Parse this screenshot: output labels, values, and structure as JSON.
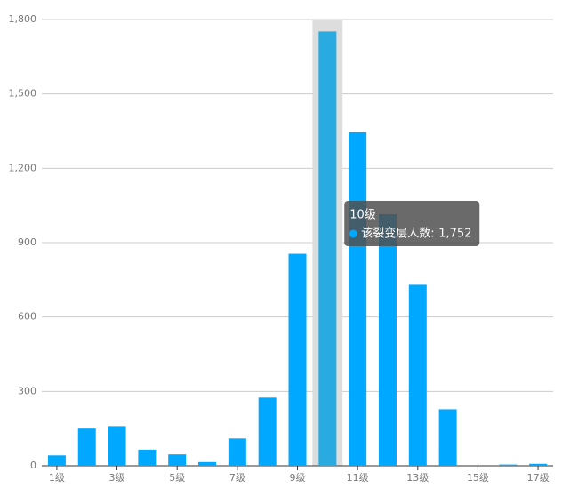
{
  "chart_data": {
    "type": "bar",
    "categories": [
      "1级",
      null,
      "3级",
      null,
      "5级",
      null,
      "7级",
      null,
      "9级",
      null,
      "11级",
      null,
      "13级",
      null,
      "15级",
      null,
      "17级"
    ],
    "series": [
      {
        "name": "该裂变层人数",
        "color": "#00a8ff",
        "values": [
          42,
          150,
          160,
          65,
          46,
          15,
          110,
          275,
          855,
          1752,
          1345,
          1015,
          730,
          228,
          0,
          5,
          8
        ]
      }
    ],
    "ylim": [
      0,
      1800
    ],
    "yticks": [
      0,
      300,
      600,
      900,
      {
        "value": 1200,
        "label": "1,200"
      },
      {
        "value": 1500,
        "label": "1,500"
      },
      {
        "value": 1800,
        "label": "1,800"
      }
    ],
    "grid": true,
    "highlight_color": "#29abe2",
    "tooltip": {
      "index": 9,
      "title": "10级",
      "value_label": "1,752"
    }
  }
}
